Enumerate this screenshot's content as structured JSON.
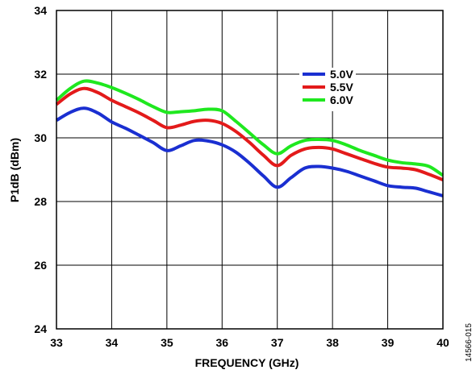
{
  "chart_data": {
    "type": "line",
    "xlabel": "FREQUENCY (GHz)",
    "ylabel": "P1dB (dBm)",
    "xlim": [
      33,
      40
    ],
    "ylim": [
      24,
      34
    ],
    "x_ticks": [
      33,
      34,
      35,
      36,
      37,
      38,
      39,
      40
    ],
    "y_ticks": [
      24,
      26,
      28,
      30,
      32,
      34
    ],
    "grid": true,
    "legend_position": "top-right",
    "series": [
      {
        "name": "5.0V",
        "color": "#1a2fd1",
        "x": [
          33,
          33.25,
          33.5,
          33.75,
          34,
          34.25,
          34.5,
          34.75,
          35,
          35.25,
          35.5,
          35.75,
          36,
          36.25,
          36.5,
          36.75,
          37,
          37.25,
          37.5,
          37.75,
          38,
          38.25,
          38.5,
          38.75,
          39,
          39.25,
          39.5,
          39.75,
          40
        ],
        "values": [
          30.55,
          30.8,
          30.93,
          30.78,
          30.5,
          30.3,
          30.08,
          29.85,
          29.6,
          29.75,
          29.92,
          29.9,
          29.78,
          29.55,
          29.2,
          28.8,
          28.45,
          28.75,
          29.05,
          29.1,
          29.05,
          28.95,
          28.8,
          28.65,
          28.5,
          28.45,
          28.42,
          28.3,
          28.18
        ]
      },
      {
        "name": "5.5V",
        "color": "#e31a1a",
        "x": [
          33,
          33.25,
          33.5,
          33.75,
          34,
          34.25,
          34.5,
          34.75,
          35,
          35.25,
          35.5,
          35.75,
          36,
          36.25,
          36.5,
          36.75,
          37,
          37.25,
          37.5,
          37.75,
          38,
          38.25,
          38.5,
          38.75,
          39,
          39.25,
          39.5,
          39.75,
          40
        ],
        "values": [
          31.05,
          31.38,
          31.55,
          31.42,
          31.18,
          30.98,
          30.78,
          30.55,
          30.32,
          30.4,
          30.52,
          30.55,
          30.45,
          30.2,
          29.85,
          29.45,
          29.13,
          29.45,
          29.65,
          29.7,
          29.65,
          29.5,
          29.35,
          29.2,
          29.08,
          29.05,
          29.0,
          28.85,
          28.68
        ]
      },
      {
        "name": "6.0V",
        "color": "#1fe81f",
        "x": [
          33,
          33.25,
          33.5,
          33.75,
          34,
          34.25,
          34.5,
          34.75,
          35,
          35.25,
          35.5,
          35.75,
          36,
          36.25,
          36.5,
          36.75,
          37,
          37.25,
          37.5,
          37.75,
          38,
          38.25,
          38.5,
          38.75,
          39,
          39.25,
          39.5,
          39.75,
          40
        ],
        "values": [
          31.18,
          31.55,
          31.78,
          31.72,
          31.58,
          31.4,
          31.2,
          30.98,
          30.8,
          30.82,
          30.85,
          30.9,
          30.85,
          30.52,
          30.15,
          29.78,
          29.5,
          29.75,
          29.92,
          29.95,
          29.92,
          29.78,
          29.6,
          29.45,
          29.3,
          29.22,
          29.18,
          29.1,
          28.82
        ]
      }
    ],
    "figure_id": "14566-015"
  }
}
